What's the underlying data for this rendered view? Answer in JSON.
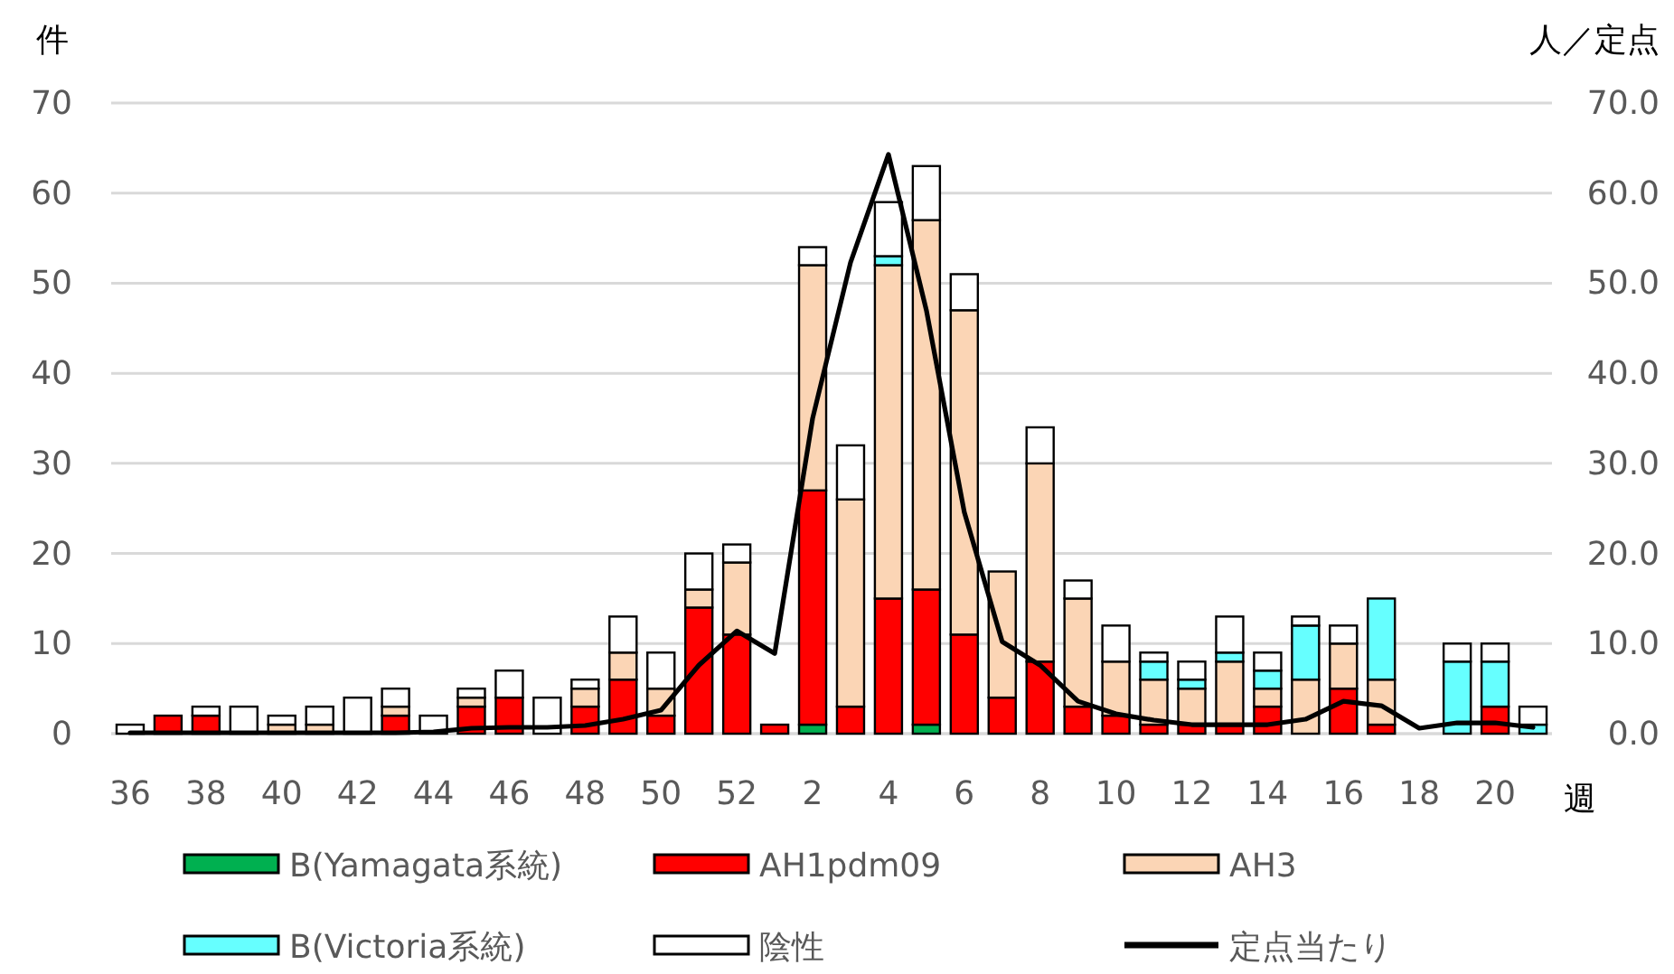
{
  "chart_data": {
    "type": "bar",
    "stacked": true,
    "ylabel": "件",
    "y2label": "人／定点",
    "xlabel": "週",
    "categories": [
      "36",
      null,
      "38",
      null,
      "40",
      null,
      "42",
      null,
      "44",
      null,
      "46",
      null,
      "48",
      null,
      "50",
      null,
      "52",
      null,
      "2",
      null,
      "4",
      null,
      "6",
      null,
      "8",
      null,
      "10",
      null,
      "12",
      null,
      "14",
      null,
      "16",
      null,
      "18",
      null,
      "20",
      null
    ],
    "ylim": [
      0,
      70
    ],
    "yticks": [
      0,
      10,
      20,
      30,
      40,
      50,
      60,
      70
    ],
    "y2lim": [
      0,
      70
    ],
    "y2ticks": [
      {
        "value": 0,
        "label": "0.0"
      },
      {
        "value": 10,
        "label": "10.0"
      },
      {
        "value": 20,
        "label": "20.0"
      },
      {
        "value": 30,
        "label": "30.0"
      },
      {
        "value": 40,
        "label": "40.0"
      },
      {
        "value": 50,
        "label": "50.0"
      },
      {
        "value": 60,
        "label": "60.0"
      },
      {
        "value": 70,
        "label": "70.0"
      }
    ],
    "grid": "y",
    "legend": "bottom",
    "series": [
      {
        "name": "B(Yamagata系統)",
        "color": "#00b050",
        "values": [
          null,
          null,
          null,
          null,
          null,
          null,
          null,
          null,
          null,
          null,
          null,
          null,
          null,
          null,
          null,
          null,
          null,
          null,
          1,
          null,
          null,
          1,
          null,
          null,
          null,
          null,
          null,
          null,
          null,
          null,
          null,
          null,
          null,
          null,
          null,
          null,
          null,
          null
        ]
      },
      {
        "name": "AH1pdm09",
        "color": "#ff0000",
        "values": [
          null,
          2,
          2,
          null,
          null,
          null,
          null,
          2,
          null,
          3,
          4,
          null,
          3,
          6,
          2,
          14,
          11,
          1,
          26,
          3,
          15,
          15,
          11,
          4,
          8,
          3,
          2,
          1,
          1,
          1,
          3,
          null,
          5,
          1,
          null,
          null,
          3,
          null
        ]
      },
      {
        "name": "AH3",
        "color": "#fbd5b5",
        "values": [
          null,
          null,
          null,
          null,
          1,
          1,
          null,
          1,
          null,
          1,
          null,
          null,
          2,
          3,
          3,
          2,
          8,
          null,
          25,
          23,
          37,
          41,
          36,
          14,
          22,
          12,
          6,
          5,
          4,
          7,
          2,
          6,
          5,
          5,
          null,
          null,
          null,
          null
        ]
      },
      {
        "name": "B(Victoria系統)",
        "color": "#66ffff",
        "values": [
          null,
          null,
          null,
          null,
          null,
          null,
          null,
          null,
          null,
          null,
          null,
          null,
          null,
          null,
          null,
          null,
          null,
          null,
          null,
          null,
          1,
          null,
          null,
          null,
          null,
          null,
          null,
          2,
          1,
          1,
          2,
          6,
          null,
          9,
          null,
          8,
          5,
          1
        ]
      },
      {
        "name": "陰性",
        "color": "#ffffff",
        "values": [
          1,
          null,
          1,
          3,
          1,
          2,
          4,
          2,
          2,
          1,
          3,
          4,
          1,
          4,
          4,
          4,
          2,
          null,
          2,
          6,
          6,
          6,
          4,
          null,
          4,
          2,
          4,
          1,
          2,
          4,
          2,
          1,
          2,
          null,
          null,
          2,
          2,
          2
        ]
      },
      {
        "name": "定点当たり",
        "type": "line",
        "axis": "y2",
        "color": "#000000",
        "values": [
          0.1,
          0.1,
          0.1,
          0.1,
          0.1,
          0.1,
          0.1,
          0.1,
          0.2,
          0.6,
          0.7,
          0.7,
          0.9,
          1.6,
          2.6,
          7.6,
          11.4,
          8.9,
          35,
          52.3,
          64.3,
          47,
          24.6,
          10.2,
          7.6,
          3.6,
          2.2,
          1.5,
          1.0,
          1.0,
          1.0,
          1.6,
          3.6,
          3.1,
          0.6,
          1.2,
          1.2,
          0.7
        ]
      }
    ]
  }
}
